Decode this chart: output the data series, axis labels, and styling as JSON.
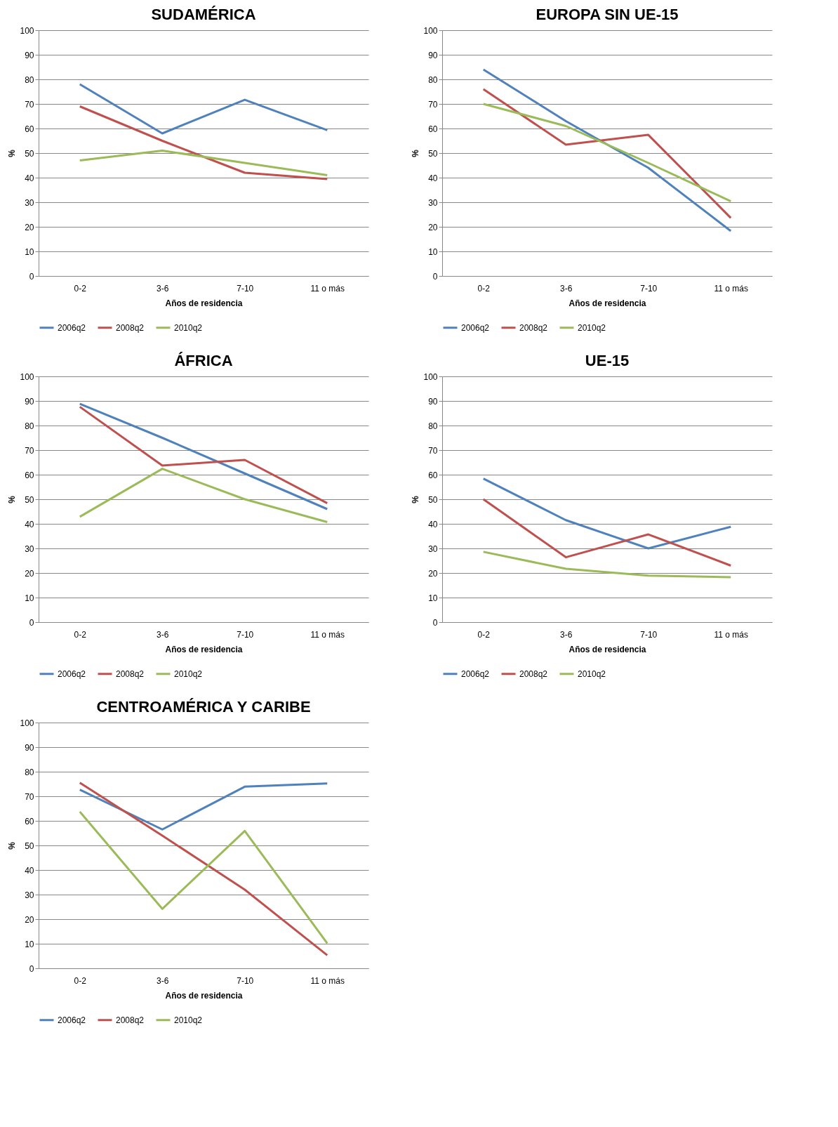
{
  "chart_data": [
    {
      "type": "line",
      "title": "SUDAMÉRICA",
      "xlabel": "Años de residencia",
      "ylabel": "%",
      "categories": [
        "0-2",
        "3-6",
        "7-10",
        "11 o más"
      ],
      "ylim": [
        0,
        100
      ],
      "yticks": [
        0,
        10,
        20,
        30,
        40,
        50,
        60,
        70,
        80,
        90,
        100
      ],
      "grid": "y",
      "legend": "bottom",
      "series": [
        {
          "name": "2006q2",
          "color": "#4f81bd",
          "values": [
            78,
            58,
            71.7,
            59.3
          ]
        },
        {
          "name": "2008q2",
          "color": "#c0504d",
          "values": [
            69,
            55,
            42,
            39.4
          ]
        },
        {
          "name": "2010q2",
          "color": "#9bbb59",
          "values": [
            47,
            51,
            46,
            41
          ]
        }
      ]
    },
    {
      "type": "line",
      "title": "EUROPA SIN UE-15",
      "xlabel": "Años de residencia",
      "ylabel": "%",
      "categories": [
        "0-2",
        "3-6",
        "7-10",
        "11 o más"
      ],
      "ylim": [
        0,
        100
      ],
      "yticks": [
        0,
        10,
        20,
        30,
        40,
        50,
        60,
        70,
        80,
        90,
        100
      ],
      "grid": "y",
      "legend": "bottom",
      "series": [
        {
          "name": "2006q2",
          "color": "#4f81bd",
          "values": [
            84,
            63,
            44,
            18.3
          ]
        },
        {
          "name": "2008q2",
          "color": "#c0504d",
          "values": [
            76,
            53.4,
            57.4,
            23.6
          ]
        },
        {
          "name": "2010q2",
          "color": "#9bbb59",
          "values": [
            70,
            61,
            46,
            30.4
          ]
        }
      ]
    },
    {
      "type": "line",
      "title": "ÁFRICA",
      "xlabel": "Años de residencia",
      "ylabel": "%",
      "categories": [
        "0-2",
        "3-6",
        "7-10",
        "11 o más"
      ],
      "ylim": [
        0,
        100
      ],
      "yticks": [
        0,
        10,
        20,
        30,
        40,
        50,
        60,
        70,
        80,
        90,
        100
      ],
      "grid": "y",
      "legend": "bottom",
      "series": [
        {
          "name": "2006q2",
          "color": "#4f81bd",
          "values": [
            88.8,
            75,
            60.5,
            46
          ]
        },
        {
          "name": "2008q2",
          "color": "#c0504d",
          "values": [
            87.6,
            63.7,
            66,
            48.4
          ]
        },
        {
          "name": "2010q2",
          "color": "#9bbb59",
          "values": [
            42.9,
            62.4,
            50,
            40.7
          ]
        }
      ]
    },
    {
      "type": "line",
      "title": "UE-15",
      "xlabel": "Años de residencia",
      "ylabel": "%",
      "categories": [
        "0-2",
        "3-6",
        "7-10",
        "11 o más"
      ],
      "ylim": [
        0,
        100
      ],
      "yticks": [
        0,
        10,
        20,
        30,
        40,
        50,
        60,
        70,
        80,
        90,
        100
      ],
      "grid": "y",
      "legend": "bottom",
      "series": [
        {
          "name": "2006q2",
          "color": "#4f81bd",
          "values": [
            58.4,
            41.5,
            30,
            38.8
          ]
        },
        {
          "name": "2008q2",
          "color": "#c0504d",
          "values": [
            50,
            26.4,
            35.7,
            23
          ]
        },
        {
          "name": "2010q2",
          "color": "#9bbb59",
          "values": [
            28.6,
            21.7,
            18.9,
            18.3
          ]
        }
      ]
    },
    {
      "type": "line",
      "title": "CENTROAMÉRICA Y CARIBE",
      "xlabel": "Años de residencia",
      "ylabel": "%",
      "categories": [
        "0-2",
        "3-6",
        "7-10",
        "11 o más"
      ],
      "ylim": [
        0,
        100
      ],
      "yticks": [
        0,
        10,
        20,
        30,
        40,
        50,
        60,
        70,
        80,
        90,
        100
      ],
      "grid": "y",
      "legend": "bottom",
      "series": [
        {
          "name": "2006q2",
          "color": "#4f81bd",
          "values": [
            72.7,
            56.5,
            73.9,
            75.2
          ]
        },
        {
          "name": "2008q2",
          "color": "#c0504d",
          "values": [
            75.5,
            54,
            32,
            5.3
          ]
        },
        {
          "name": "2010q2",
          "color": "#9bbb59",
          "values": [
            63.7,
            24.2,
            55.9,
            10.2
          ]
        }
      ]
    }
  ]
}
